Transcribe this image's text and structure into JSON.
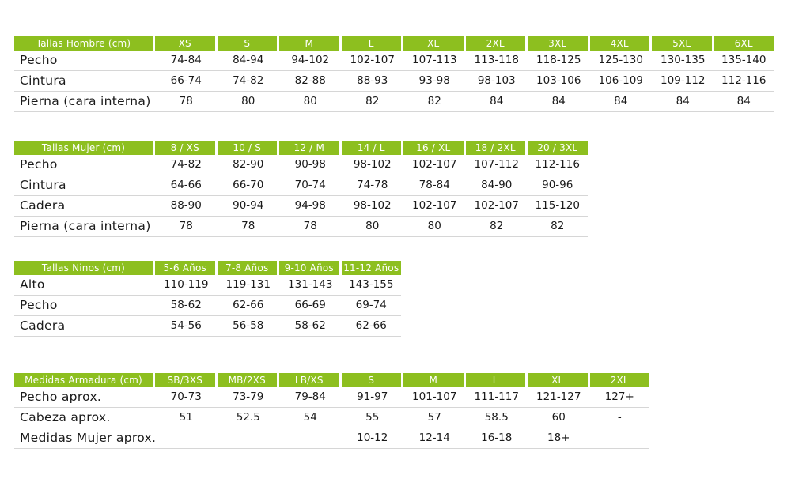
{
  "tables": [
    {
      "title": "Tallas Hombre (cm)",
      "columns": [
        "XS",
        "S",
        "M",
        "L",
        "XL",
        "2XL",
        "3XL",
        "4XL",
        "5XL",
        "6XL"
      ],
      "rows": [
        {
          "label": "Pecho",
          "values": [
            "74-84",
            "84-94",
            "94-102",
            "102-107",
            "107-113",
            "113-118",
            "118-125",
            "125-130",
            "130-135",
            "135-140"
          ]
        },
        {
          "label": "Cintura",
          "values": [
            "66-74",
            "74-82",
            "82-88",
            "88-93",
            "93-98",
            "98-103",
            "103-106",
            "106-109",
            "109-112",
            "112-116"
          ]
        },
        {
          "label": "Pierna (cara interna)",
          "values": [
            "78",
            "80",
            "80",
            "82",
            "82",
            "84",
            "84",
            "84",
            "84",
            "84"
          ]
        }
      ]
    },
    {
      "title": "Tallas Mujer (cm)",
      "columns": [
        "8 / XS",
        "10 / S",
        "12 / M",
        "14 / L",
        "16 / XL",
        "18 / 2XL",
        "20 / 3XL"
      ],
      "rows": [
        {
          "label": "Pecho",
          "values": [
            "74-82",
            "82-90",
            "90-98",
            "98-102",
            "102-107",
            "107-112",
            "112-116"
          ]
        },
        {
          "label": "Cintura",
          "values": [
            "64-66",
            "66-70",
            "70-74",
            "74-78",
            "78-84",
            "84-90",
            "90-96"
          ]
        },
        {
          "label": "Cadera",
          "values": [
            "88-90",
            "90-94",
            "94-98",
            "98-102",
            "102-107",
            "102-107",
            "115-120"
          ]
        },
        {
          "label": "Pierna (cara interna)",
          "values": [
            "78",
            "78",
            "78",
            "80",
            "80",
            "82",
            "82"
          ]
        }
      ]
    },
    {
      "title": "Tallas Ninos (cm)",
      "columns": [
        "5-6 Años",
        "7-8 Años",
        "9-10 Años",
        "11-12 Años"
      ],
      "rows": [
        {
          "label": "Alto",
          "values": [
            "110-119",
            "119-131",
            "131-143",
            "143-155"
          ]
        },
        {
          "label": "Pecho",
          "values": [
            "58-62",
            "62-66",
            "66-69",
            "69-74"
          ]
        },
        {
          "label": "Cadera",
          "values": [
            "54-56",
            "56-58",
            "58-62",
            "62-66"
          ]
        }
      ]
    },
    {
      "title": "Medidas Armadura (cm)",
      "columns": [
        "SB/3XS",
        "MB/2XS",
        "LB/XS",
        "S",
        "M",
        "L",
        "XL",
        "2XL"
      ],
      "rows": [
        {
          "label": "Pecho aprox.",
          "values": [
            "70-73",
            "73-79",
            "79-84",
            "91-97",
            "101-107",
            "111-117",
            "121-127",
            "127+"
          ]
        },
        {
          "label": "Cabeza aprox.",
          "values": [
            "51",
            "52.5",
            "54",
            "55",
            "57",
            "58.5",
            "60",
            "-"
          ]
        },
        {
          "label": "Medidas Mujer aprox.",
          "values": [
            "",
            "",
            "",
            "10-12",
            "12-14",
            "16-18",
            "18+",
            ""
          ]
        }
      ]
    }
  ],
  "colors": {
    "header_bg": "#8dbf1f",
    "header_text": "#ffffff",
    "row_rule": "#d6d6d6"
  }
}
